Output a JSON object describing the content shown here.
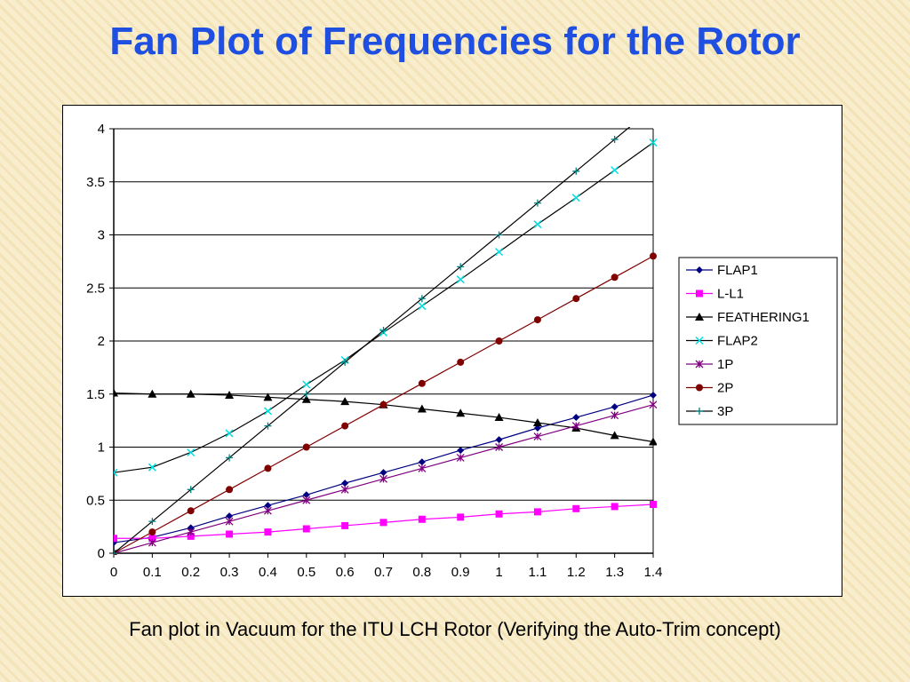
{
  "slide": {
    "title": "Fan Plot of Frequencies for the Rotor",
    "caption": "Fan plot in Vacuum for the ITU LCH Rotor (Verifying the Auto-Trim concept)"
  },
  "chart_data": {
    "type": "line",
    "title": "",
    "xlabel": "",
    "ylabel": "",
    "xlim": [
      0,
      1.4
    ],
    "ylim": [
      0,
      4
    ],
    "xticks": [
      "0",
      "0.1",
      "0.2",
      "0.3",
      "0.4",
      "0.5",
      "0.6",
      "0.7",
      "0.8",
      "0.9",
      "1",
      "1.1",
      "1.2",
      "1.3",
      "1.4"
    ],
    "yticks": [
      "0",
      "0.5",
      "1",
      "1.5",
      "2",
      "2.5",
      "3",
      "3.5",
      "4"
    ],
    "grid": "horizontal",
    "legend_position": "right",
    "x": [
      0,
      0.1,
      0.2,
      0.3,
      0.4,
      0.5,
      0.6,
      0.7,
      0.8,
      0.9,
      1.0,
      1.1,
      1.2,
      1.3,
      1.4
    ],
    "series": [
      {
        "name": "FLAP1",
        "color": "#000080",
        "marker": "diamond",
        "values": [
          0.1,
          0.15,
          0.24,
          0.35,
          0.45,
          0.55,
          0.66,
          0.76,
          0.86,
          0.97,
          1.07,
          1.18,
          1.28,
          1.38,
          1.49
        ]
      },
      {
        "name": "L-L1",
        "color": "#ff00ff",
        "marker": "square",
        "values": [
          0.14,
          0.14,
          0.16,
          0.18,
          0.2,
          0.23,
          0.26,
          0.29,
          0.32,
          0.34,
          0.37,
          0.39,
          0.42,
          0.44,
          0.46
        ]
      },
      {
        "name": "FEATHERING1",
        "color": "#000000",
        "marker": "triangle",
        "values": [
          1.51,
          1.5,
          1.5,
          1.49,
          1.47,
          1.45,
          1.43,
          1.4,
          1.36,
          1.32,
          1.28,
          1.23,
          1.18,
          1.11,
          1.05
        ]
      },
      {
        "name": "FLAP2",
        "color": "#00e0e0",
        "line": "#000000",
        "marker": "x",
        "values": [
          0.76,
          0.81,
          0.95,
          1.13,
          1.34,
          1.59,
          1.82,
          2.08,
          2.33,
          2.58,
          2.84,
          3.1,
          3.35,
          3.61,
          3.87
        ]
      },
      {
        "name": "1P",
        "color": "#800080",
        "marker": "star",
        "values": [
          0,
          0.1,
          0.2,
          0.3,
          0.4,
          0.5,
          0.6,
          0.7,
          0.8,
          0.9,
          1.0,
          1.1,
          1.2,
          1.3,
          1.4
        ]
      },
      {
        "name": "2P",
        "color": "#800000",
        "marker": "circle",
        "values": [
          0,
          0.2,
          0.4,
          0.6,
          0.8,
          1.0,
          1.2,
          1.4,
          1.6,
          1.8,
          2.0,
          2.2,
          2.4,
          2.6,
          2.8
        ]
      },
      {
        "name": "3P",
        "color": "#000000",
        "markerColor": "#008080",
        "marker": "plus",
        "values": [
          0,
          0.3,
          0.6,
          0.9,
          1.2,
          1.5,
          1.8,
          2.1,
          2.4,
          2.7,
          3.0,
          3.3,
          3.6,
          3.9,
          4.2
        ]
      }
    ]
  }
}
